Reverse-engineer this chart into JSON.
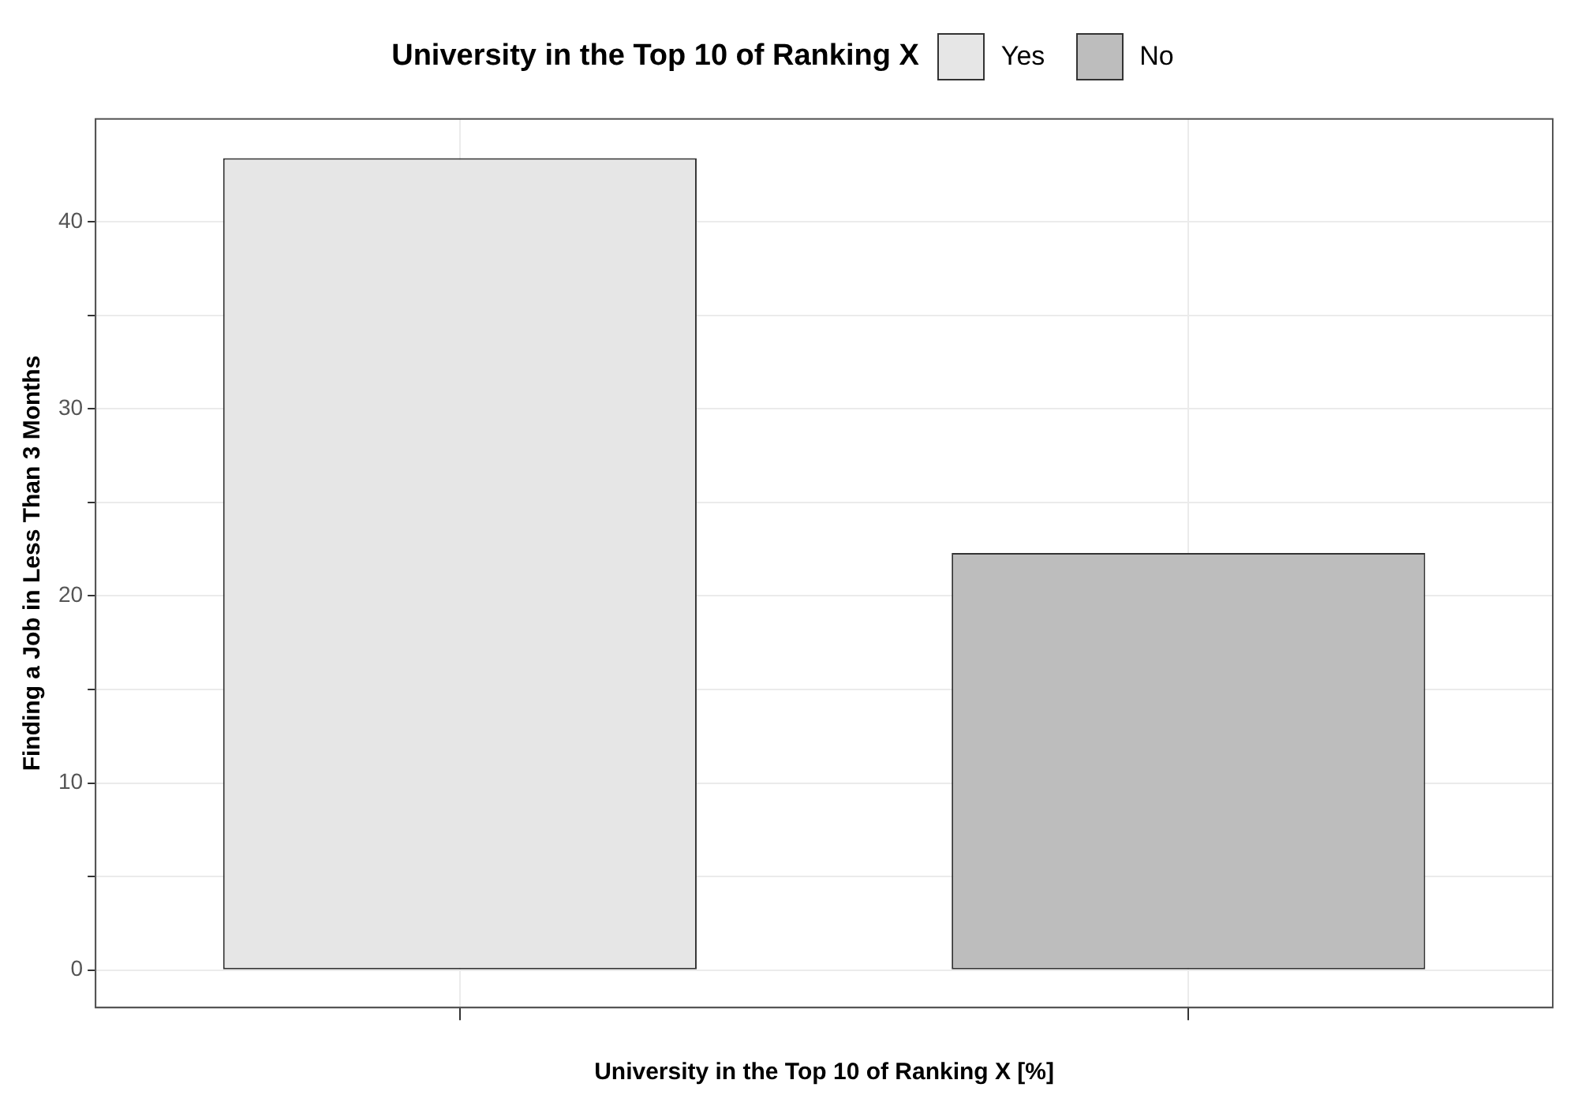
{
  "chart_data": {
    "type": "bar",
    "xlabel": "University in the Top 10 of Ranking X [%]",
    "ylabel": "Finding a Job in Less Than 3 Months",
    "legend_title": "University in the Top 10 of Ranking X",
    "categories": [
      null,
      null
    ],
    "series": [
      {
        "name": "Yes",
        "color": "#e6e6e6",
        "values": [
          43.4,
          null
        ]
      },
      {
        "name": "No",
        "color": "#bdbdbd",
        "values": [
          null,
          22.3
        ]
      }
    ],
    "ylim": [
      -2,
      45.5
    ],
    "yticks": [
      0,
      {
        "value": 5,
        "label": null
      },
      10,
      {
        "value": 15,
        "label": null
      },
      20,
      {
        "value": 25,
        "label": null
      },
      30,
      {
        "value": 35,
        "label": null
      },
      40
    ],
    "grid": true,
    "legend": "top"
  }
}
